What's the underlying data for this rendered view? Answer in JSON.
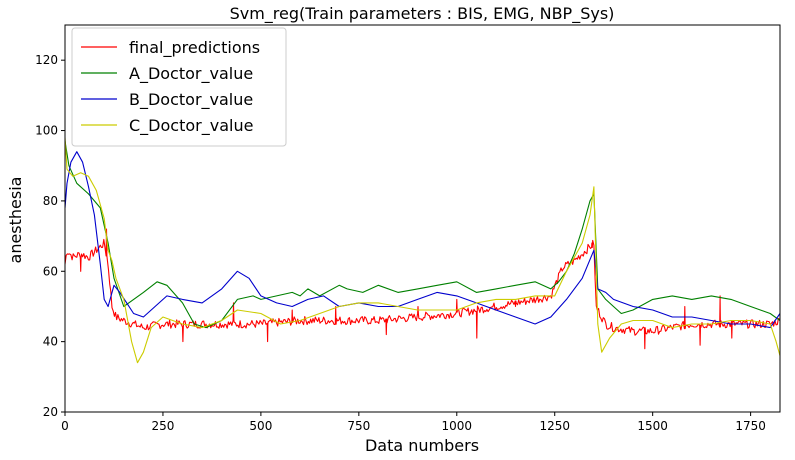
{
  "chart_data": {
    "type": "line",
    "title": "Svm_reg(Train parameters : BIS, EMG, NBP_Sys)",
    "xlabel": "Data numbers",
    "ylabel": "anesthesia",
    "xlim": [
      0,
      1825
    ],
    "ylim": [
      20,
      130
    ],
    "xticks": [
      0,
      250,
      500,
      750,
      1000,
      1250,
      1500,
      1750
    ],
    "yticks": [
      20,
      40,
      60,
      80,
      100,
      120
    ],
    "legend_position": "top-left",
    "grid": false,
    "series": [
      {
        "name": "final_predictions",
        "color": "#ff0000",
        "noise": 1.2,
        "spikes": [
          [
            40,
            60
          ],
          [
            105,
            72
          ],
          [
            300,
            40
          ],
          [
            430,
            51
          ],
          [
            515,
            40
          ],
          [
            580,
            49
          ],
          [
            690,
            50
          ],
          [
            820,
            42
          ],
          [
            900,
            50
          ],
          [
            1000,
            52
          ],
          [
            1050,
            41
          ],
          [
            1150,
            50
          ],
          [
            1345,
            68
          ],
          [
            1480,
            38
          ],
          [
            1580,
            50
          ],
          [
            1620,
            39
          ],
          [
            1670,
            53
          ],
          [
            1700,
            41
          ]
        ],
        "points": [
          [
            0,
            62
          ],
          [
            5,
            66
          ],
          [
            20,
            64
          ],
          [
            40,
            65
          ],
          [
            60,
            64
          ],
          [
            80,
            66
          ],
          [
            100,
            68
          ],
          [
            110,
            62
          ],
          [
            120,
            50
          ],
          [
            130,
            47
          ],
          [
            150,
            46
          ],
          [
            175,
            45
          ],
          [
            200,
            44
          ],
          [
            250,
            45
          ],
          [
            300,
            45
          ],
          [
            400,
            45
          ],
          [
            500,
            45
          ],
          [
            600,
            46
          ],
          [
            700,
            46
          ],
          [
            800,
            46
          ],
          [
            900,
            47
          ],
          [
            1000,
            48
          ],
          [
            1050,
            49
          ],
          [
            1100,
            50
          ],
          [
            1150,
            51
          ],
          [
            1200,
            52
          ],
          [
            1240,
            53
          ],
          [
            1270,
            61
          ],
          [
            1300,
            63
          ],
          [
            1320,
            65
          ],
          [
            1350,
            68
          ],
          [
            1355,
            50
          ],
          [
            1380,
            45
          ],
          [
            1400,
            44
          ],
          [
            1450,
            43
          ],
          [
            1500,
            43
          ],
          [
            1550,
            44
          ],
          [
            1600,
            45
          ],
          [
            1650,
            45
          ],
          [
            1700,
            45
          ],
          [
            1750,
            45
          ],
          [
            1800,
            45
          ],
          [
            1825,
            46
          ]
        ]
      },
      {
        "name": "A_Doctor_value",
        "color": "#008000",
        "noise": 0,
        "spikes": [],
        "points": [
          [
            0,
            97
          ],
          [
            10,
            90
          ],
          [
            30,
            85
          ],
          [
            60,
            82
          ],
          [
            90,
            78
          ],
          [
            110,
            68
          ],
          [
            125,
            58
          ],
          [
            150,
            50
          ],
          [
            200,
            54
          ],
          [
            235,
            57
          ],
          [
            260,
            56
          ],
          [
            300,
            51
          ],
          [
            330,
            45
          ],
          [
            360,
            44
          ],
          [
            400,
            46
          ],
          [
            440,
            52
          ],
          [
            480,
            53
          ],
          [
            500,
            52
          ],
          [
            540,
            53
          ],
          [
            580,
            54
          ],
          [
            600,
            53
          ],
          [
            620,
            55
          ],
          [
            650,
            53
          ],
          [
            700,
            56
          ],
          [
            720,
            55
          ],
          [
            760,
            54
          ],
          [
            800,
            56
          ],
          [
            850,
            54
          ],
          [
            900,
            55
          ],
          [
            950,
            56
          ],
          [
            1000,
            57
          ],
          [
            1050,
            54
          ],
          [
            1100,
            55
          ],
          [
            1150,
            56
          ],
          [
            1200,
            57
          ],
          [
            1240,
            55
          ],
          [
            1260,
            57
          ],
          [
            1280,
            60
          ],
          [
            1300,
            65
          ],
          [
            1320,
            72
          ],
          [
            1340,
            80
          ],
          [
            1350,
            82
          ],
          [
            1360,
            55
          ],
          [
            1380,
            52
          ],
          [
            1400,
            50
          ],
          [
            1420,
            48
          ],
          [
            1450,
            49
          ],
          [
            1500,
            52
          ],
          [
            1550,
            53
          ],
          [
            1600,
            52
          ],
          [
            1650,
            53
          ],
          [
            1700,
            52
          ],
          [
            1750,
            50
          ],
          [
            1800,
            48
          ],
          [
            1825,
            46
          ]
        ]
      },
      {
        "name": "B_Doctor_value",
        "color": "#0000cd",
        "noise": 0,
        "spikes": [],
        "points": [
          [
            0,
            78
          ],
          [
            5,
            85
          ],
          [
            15,
            91
          ],
          [
            30,
            94
          ],
          [
            45,
            91
          ],
          [
            60,
            84
          ],
          [
            75,
            76
          ],
          [
            90,
            62
          ],
          [
            100,
            52
          ],
          [
            110,
            50
          ],
          [
            125,
            56
          ],
          [
            140,
            54
          ],
          [
            175,
            48
          ],
          [
            200,
            47
          ],
          [
            260,
            53
          ],
          [
            300,
            52
          ],
          [
            350,
            51
          ],
          [
            400,
            55
          ],
          [
            440,
            60
          ],
          [
            470,
            58
          ],
          [
            500,
            53
          ],
          [
            540,
            51
          ],
          [
            580,
            50
          ],
          [
            620,
            52
          ],
          [
            660,
            53
          ],
          [
            700,
            50
          ],
          [
            750,
            51
          ],
          [
            800,
            50
          ],
          [
            850,
            50
          ],
          [
            900,
            52
          ],
          [
            950,
            54
          ],
          [
            1000,
            53
          ],
          [
            1050,
            51
          ],
          [
            1100,
            49
          ],
          [
            1150,
            47
          ],
          [
            1200,
            45
          ],
          [
            1240,
            47
          ],
          [
            1280,
            52
          ],
          [
            1320,
            58
          ],
          [
            1350,
            66
          ],
          [
            1360,
            55
          ],
          [
            1380,
            54
          ],
          [
            1400,
            52
          ],
          [
            1450,
            50
          ],
          [
            1500,
            49
          ],
          [
            1550,
            47
          ],
          [
            1600,
            47
          ],
          [
            1650,
            46
          ],
          [
            1700,
            45
          ],
          [
            1750,
            45
          ],
          [
            1800,
            44
          ],
          [
            1825,
            48
          ]
        ]
      },
      {
        "name": "C_Doctor_value",
        "color": "#cccc00",
        "noise": 0,
        "spikes": [],
        "points": [
          [
            0,
            98
          ],
          [
            5,
            89
          ],
          [
            20,
            87
          ],
          [
            40,
            88
          ],
          [
            60,
            87
          ],
          [
            80,
            83
          ],
          [
            100,
            75
          ],
          [
            110,
            66
          ],
          [
            120,
            63
          ],
          [
            130,
            58
          ],
          [
            150,
            52
          ],
          [
            170,
            40
          ],
          [
            185,
            34
          ],
          [
            200,
            37
          ],
          [
            220,
            44
          ],
          [
            250,
            47
          ],
          [
            300,
            45
          ],
          [
            350,
            44
          ],
          [
            400,
            46
          ],
          [
            440,
            49
          ],
          [
            500,
            48
          ],
          [
            550,
            45
          ],
          [
            600,
            46
          ],
          [
            650,
            48
          ],
          [
            700,
            50
          ],
          [
            750,
            51
          ],
          [
            800,
            51
          ],
          [
            850,
            50
          ],
          [
            900,
            49
          ],
          [
            1000,
            49
          ],
          [
            1050,
            51
          ],
          [
            1100,
            52
          ],
          [
            1150,
            52
          ],
          [
            1200,
            53
          ],
          [
            1250,
            53
          ],
          [
            1280,
            60
          ],
          [
            1320,
            68
          ],
          [
            1340,
            76
          ],
          [
            1350,
            84
          ],
          [
            1360,
            45
          ],
          [
            1370,
            37
          ],
          [
            1390,
            41
          ],
          [
            1420,
            45
          ],
          [
            1450,
            46
          ],
          [
            1500,
            46
          ],
          [
            1550,
            44
          ],
          [
            1600,
            45
          ],
          [
            1650,
            45
          ],
          [
            1700,
            46
          ],
          [
            1750,
            46
          ],
          [
            1800,
            45
          ],
          [
            1815,
            40
          ],
          [
            1825,
            36
          ]
        ]
      }
    ]
  }
}
